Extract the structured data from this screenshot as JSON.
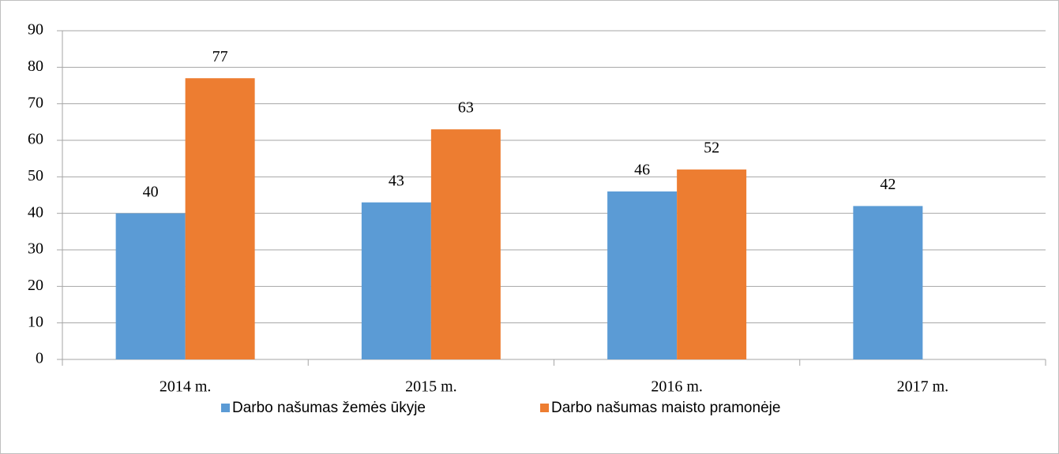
{
  "chart_data": {
    "type": "bar",
    "categories": [
      "2014 m.",
      "2015 m.",
      "2016 m.",
      "2017 m."
    ],
    "series": [
      {
        "name": "Darbo našumas žemės ūkyje",
        "color": "#5b9bd5",
        "values": [
          40,
          43,
          46,
          42
        ]
      },
      {
        "name": "Darbo našumas maisto pramonėje",
        "color": "#ed7d31",
        "values": [
          77,
          63,
          52,
          null
        ]
      }
    ],
    "ylim": [
      0,
      90
    ],
    "yticks": [
      0,
      10,
      20,
      30,
      40,
      50,
      60,
      70,
      80,
      90
    ],
    "grid": true,
    "legend": "bottom"
  }
}
